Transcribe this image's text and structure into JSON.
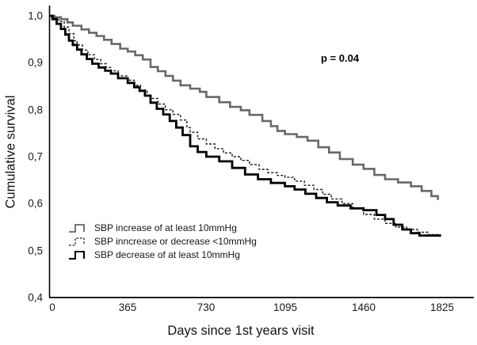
{
  "figure": {
    "p_value_label": "p = 0.04"
  },
  "chart_data": {
    "type": "line",
    "subtype": "kaplan-meier-step-curves",
    "title": "",
    "xlabel": "Days since 1st years visit",
    "ylabel": "Cumulative survival",
    "xlim": [
      0,
      1825
    ],
    "ylim": [
      0.4,
      1.0
    ],
    "grid": false,
    "legend_position": "inside-lower-left",
    "x_tick_labels": [
      "0",
      "365",
      "730",
      "1095",
      "1460",
      "1825"
    ],
    "x_tick_values": [
      0,
      365,
      730,
      1095,
      1460,
      1825
    ],
    "y_tick_labels": [
      "1,0",
      "0,9",
      "0,8",
      "0,7",
      "0,6",
      "0,5",
      "0,4"
    ],
    "y_tick_values": [
      1.0,
      0.9,
      0.8,
      0.7,
      0.6,
      0.5,
      0.4
    ],
    "annotations": [
      {
        "text": "p = 0.04",
        "x_days": 1270,
        "y_survival": 0.92
      }
    ],
    "series": [
      {
        "name": "SBP increase of at least 10mmHg",
        "color": "#686868",
        "line_style": "solid",
        "line_width": 2.6,
        "points": [
          [
            0,
            1.0
          ],
          [
            25,
            0.997
          ],
          [
            55,
            0.993
          ],
          [
            85,
            0.986
          ],
          [
            110,
            0.979
          ],
          [
            150,
            0.971
          ],
          [
            185,
            0.964
          ],
          [
            220,
            0.957
          ],
          [
            255,
            0.949
          ],
          [
            290,
            0.94
          ],
          [
            330,
            0.93
          ],
          [
            365,
            0.924
          ],
          [
            400,
            0.916
          ],
          [
            435,
            0.907
          ],
          [
            471,
            0.891
          ],
          [
            505,
            0.882
          ],
          [
            540,
            0.872
          ],
          [
            575,
            0.862
          ],
          [
            610,
            0.852
          ],
          [
            655,
            0.845
          ],
          [
            700,
            0.838
          ],
          [
            730,
            0.827
          ],
          [
            790,
            0.816
          ],
          [
            840,
            0.806
          ],
          [
            890,
            0.799
          ],
          [
            930,
            0.789
          ],
          [
            990,
            0.776
          ],
          [
            1030,
            0.765
          ],
          [
            1060,
            0.755
          ],
          [
            1095,
            0.748
          ],
          [
            1150,
            0.742
          ],
          [
            1200,
            0.734
          ],
          [
            1250,
            0.72
          ],
          [
            1300,
            0.709
          ],
          [
            1350,
            0.695
          ],
          [
            1410,
            0.683
          ],
          [
            1460,
            0.674
          ],
          [
            1510,
            0.661
          ],
          [
            1560,
            0.652
          ],
          [
            1620,
            0.645
          ],
          [
            1680,
            0.637
          ],
          [
            1730,
            0.627
          ],
          [
            1775,
            0.616
          ],
          [
            1805,
            0.608
          ]
        ]
      },
      {
        "name": "SBP inncrease or decrease <10mmHg",
        "color": "#1a1a1a",
        "line_style": "dashed",
        "line_width": 1.4,
        "points": [
          [
            0,
            1.0
          ],
          [
            20,
            0.995
          ],
          [
            45,
            0.988
          ],
          [
            70,
            0.976
          ],
          [
            92,
            0.962
          ],
          [
            115,
            0.947
          ],
          [
            130,
            0.938
          ],
          [
            155,
            0.927
          ],
          [
            180,
            0.917
          ],
          [
            210,
            0.907
          ],
          [
            240,
            0.898
          ],
          [
            265,
            0.89
          ],
          [
            287,
            0.883
          ],
          [
            320,
            0.872
          ],
          [
            365,
            0.863
          ],
          [
            395,
            0.852
          ],
          [
            425,
            0.842
          ],
          [
            455,
            0.83
          ],
          [
            471,
            0.824
          ],
          [
            505,
            0.812
          ],
          [
            540,
            0.8
          ],
          [
            575,
            0.79
          ],
          [
            610,
            0.778
          ],
          [
            640,
            0.762
          ],
          [
            655,
            0.752
          ],
          [
            690,
            0.738
          ],
          [
            730,
            0.727
          ],
          [
            770,
            0.717
          ],
          [
            810,
            0.708
          ],
          [
            850,
            0.7
          ],
          [
            890,
            0.692
          ],
          [
            930,
            0.683
          ],
          [
            975,
            0.673
          ],
          [
            1015,
            0.666
          ],
          [
            1060,
            0.66
          ],
          [
            1095,
            0.656
          ],
          [
            1140,
            0.648
          ],
          [
            1185,
            0.639
          ],
          [
            1230,
            0.63
          ],
          [
            1270,
            0.62
          ],
          [
            1310,
            0.61
          ],
          [
            1360,
            0.6
          ],
          [
            1410,
            0.59
          ],
          [
            1460,
            0.577
          ],
          [
            1510,
            0.567
          ],
          [
            1560,
            0.558
          ],
          [
            1610,
            0.55
          ],
          [
            1660,
            0.545
          ],
          [
            1710,
            0.539
          ],
          [
            1760,
            0.534
          ],
          [
            1815,
            0.529
          ]
        ]
      },
      {
        "name": "SBP decrease of at least 10mmHg",
        "color": "#000000",
        "line_style": "solid",
        "line_width": 2.8,
        "points": [
          [
            0,
            1.0
          ],
          [
            15,
            0.993
          ],
          [
            35,
            0.983
          ],
          [
            55,
            0.972
          ],
          [
            75,
            0.96
          ],
          [
            92,
            0.947
          ],
          [
            110,
            0.938
          ],
          [
            130,
            0.928
          ],
          [
            150,
            0.918
          ],
          [
            175,
            0.908
          ],
          [
            200,
            0.898
          ],
          [
            230,
            0.89
          ],
          [
            260,
            0.883
          ],
          [
            287,
            0.877
          ],
          [
            320,
            0.867
          ],
          [
            365,
            0.857
          ],
          [
            395,
            0.848
          ],
          [
            420,
            0.84
          ],
          [
            445,
            0.83
          ],
          [
            471,
            0.815
          ],
          [
            500,
            0.802
          ],
          [
            530,
            0.79
          ],
          [
            560,
            0.776
          ],
          [
            590,
            0.762
          ],
          [
            620,
            0.746
          ],
          [
            655,
            0.722
          ],
          [
            690,
            0.71
          ],
          [
            730,
            0.7
          ],
          [
            790,
            0.69
          ],
          [
            850,
            0.676
          ],
          [
            910,
            0.662
          ],
          [
            970,
            0.652
          ],
          [
            1030,
            0.644
          ],
          [
            1095,
            0.637
          ],
          [
            1140,
            0.63
          ],
          [
            1190,
            0.621
          ],
          [
            1240,
            0.612
          ],
          [
            1290,
            0.603
          ],
          [
            1340,
            0.596
          ],
          [
            1400,
            0.59
          ],
          [
            1460,
            0.586
          ],
          [
            1520,
            0.576
          ],
          [
            1560,
            0.567
          ],
          [
            1600,
            0.555
          ],
          [
            1640,
            0.545
          ],
          [
            1680,
            0.537
          ],
          [
            1720,
            0.532
          ],
          [
            1815,
            0.53
          ]
        ]
      }
    ]
  }
}
